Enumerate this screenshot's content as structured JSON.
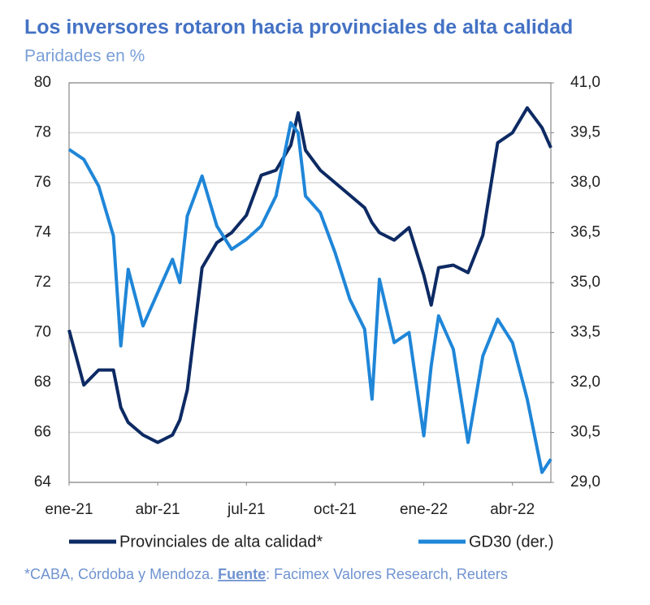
{
  "chart_data": {
    "type": "line",
    "title": "Los inversores rotaron hacia provinciales de alta calidad",
    "subtitle": "Paridades en %",
    "x": [
      0,
      0.5,
      1,
      1.5,
      1.75,
      2,
      2.5,
      3,
      3.5,
      3.75,
      4,
      4.5,
      5,
      5.5,
      6,
      6.5,
      7,
      7.5,
      7.75,
      8,
      8.5,
      9,
      9.5,
      10,
      10.25,
      10.5,
      11,
      11.5,
      12,
      12.25,
      12.5,
      13,
      13.5,
      14,
      14.5,
      15,
      15.5,
      16,
      16.3
    ],
    "xlim": [
      0,
      16.3
    ],
    "xticks": [
      {
        "value": 0,
        "label": "ene-21"
      },
      {
        "value": 3,
        "label": "abr-21"
      },
      {
        "value": 6,
        "label": "jul-21"
      },
      {
        "value": 9,
        "label": "oct-21"
      },
      {
        "value": 12,
        "label": "ene-22"
      },
      {
        "value": 15,
        "label": "abr-22"
      }
    ],
    "ylim": [
      64,
      80
    ],
    "yticks": [
      64,
      66,
      68,
      70,
      72,
      74,
      76,
      78,
      80
    ],
    "y2lim": [
      29,
      41
    ],
    "y2ticks": [
      {
        "value": 29,
        "label": "29,0"
      },
      {
        "value": 30.5,
        "label": "30,5"
      },
      {
        "value": 32,
        "label": "32,0"
      },
      {
        "value": 33.5,
        "label": "33,5"
      },
      {
        "value": 35,
        "label": "35,0"
      },
      {
        "value": 36.5,
        "label": "36,5"
      },
      {
        "value": 38,
        "label": "38,0"
      },
      {
        "value": 39.5,
        "label": "39,5"
      },
      {
        "value": 41,
        "label": "41,0"
      }
    ],
    "grid": true,
    "legend": "bottom",
    "series": [
      {
        "name": "Provinciales de alta calidad*",
        "color": "#0d2a63",
        "values": [
          70.1,
          67.9,
          68.5,
          68.5,
          67.0,
          66.4,
          65.9,
          65.6,
          65.9,
          66.5,
          67.7,
          72.6,
          73.6,
          74.0,
          74.7,
          76.3,
          76.5,
          77.5,
          78.8,
          77.3,
          76.5,
          76.0,
          75.5,
          75.0,
          74.4,
          74.0,
          73.7,
          74.2,
          72.3,
          71.1,
          72.6,
          72.7,
          72.4,
          73.9,
          77.6,
          78.0,
          79.0,
          78.2,
          77.4
        ]
      },
      {
        "name": "GD30 (der.)",
        "color": "#1f86d8",
        "axis": "y2",
        "values": [
          39.0,
          38.7,
          37.9,
          36.4,
          33.1,
          35.4,
          33.7,
          34.7,
          35.7,
          35.0,
          37.0,
          38.2,
          36.7,
          36.0,
          36.3,
          36.7,
          37.6,
          39.8,
          39.5,
          37.6,
          37.1,
          35.9,
          34.5,
          33.6,
          31.5,
          35.1,
          33.2,
          33.5,
          30.4,
          32.5,
          34.0,
          33.0,
          30.2,
          32.8,
          33.9,
          33.2,
          31.5,
          29.3,
          29.7
        ]
      }
    ],
    "footnote": {
      "note": "*CABA, Córdoba y Mendoza.",
      "source_label": "Fuente",
      "source_text": ": Facimex Valores Research, Reuters"
    }
  }
}
